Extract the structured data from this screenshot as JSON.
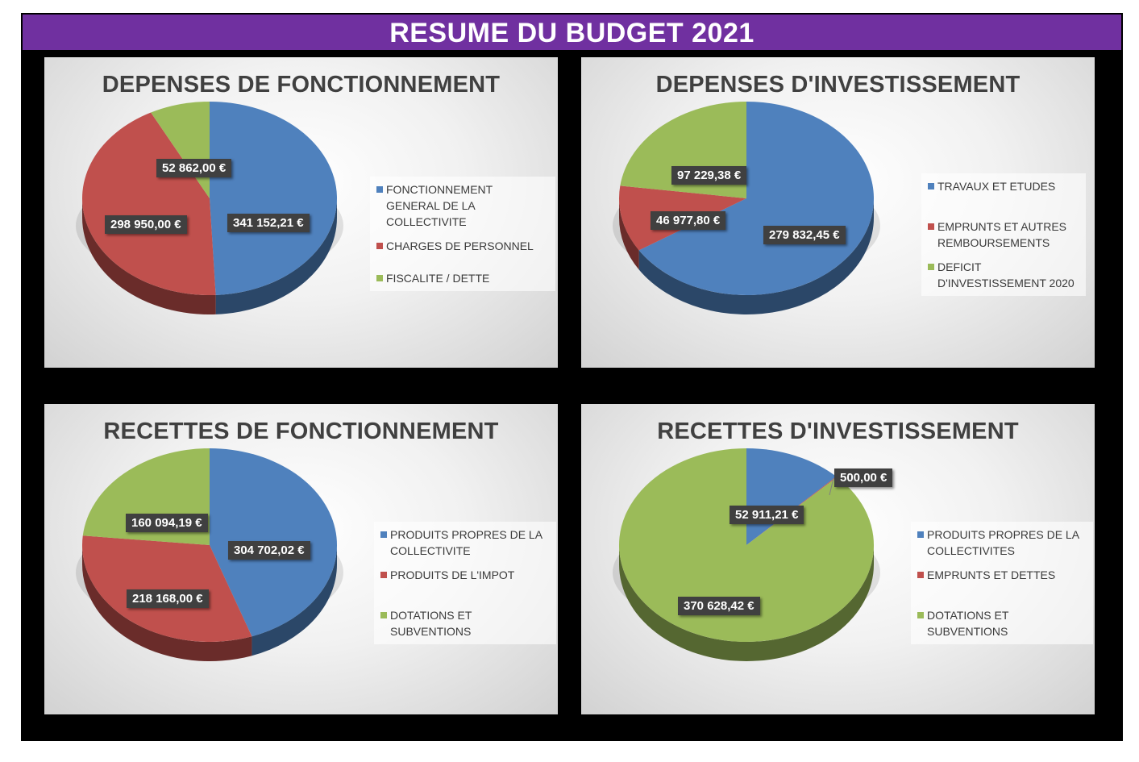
{
  "title": "RESUME DU BUDGET 2021",
  "colors": {
    "blue": "#4f81bd",
    "red": "#c0504d",
    "green": "#9bbb59",
    "header": "#7030a0"
  },
  "chart_data": [
    {
      "type": "pie",
      "title": "DEPENSES DE FONCTIONNEMENT",
      "categories": [
        "FONCTIONNEMENT GENERAL DE LA COLLECTIVITE",
        "CHARGES DE PERSONNEL",
        "FISCALITE / DETTE"
      ],
      "values": [
        341152.21,
        298950.0,
        52862.0
      ],
      "value_labels": [
        "341 152,21 €",
        "298 950,00 €",
        "52 862,00 €"
      ],
      "legend": "right"
    },
    {
      "type": "pie",
      "title": "DEPENSES D'INVESTISSEMENT",
      "categories": [
        "TRAVAUX ET ETUDES",
        "EMPRUNTS ET AUTRES REMBOURSEMENTS",
        "DEFICIT D'INVESTISSEMENT 2020"
      ],
      "values": [
        279832.45,
        46977.8,
        97229.38
      ],
      "value_labels": [
        "279 832,45 €",
        "46 977,80 €",
        "97 229,38 €"
      ],
      "legend": "right"
    },
    {
      "type": "pie",
      "title": "RECETTES DE FONCTIONNEMENT",
      "categories": [
        "PRODUITS PROPRES DE LA COLLECTIVITE",
        "PRODUITS DE L'IMPOT",
        "DOTATIONS ET SUBVENTIONS"
      ],
      "values": [
        304702.02,
        218168.0,
        160094.19
      ],
      "value_labels": [
        "304 702,02 €",
        "218 168,00 €",
        "160 094,19 €"
      ],
      "legend": "right"
    },
    {
      "type": "pie",
      "title": "RECETTES D'INVESTISSEMENT",
      "categories": [
        "PRODUITS PROPRES DE LA COLLECTIVITES",
        "EMPRUNTS ET DETTES",
        "DOTATIONS ET SUBVENTIONS"
      ],
      "values": [
        52911.21,
        500.0,
        370628.42
      ],
      "value_labels": [
        "52 911,21 €",
        "500,00 €",
        "370 628,42 €"
      ],
      "legend": "right"
    }
  ]
}
